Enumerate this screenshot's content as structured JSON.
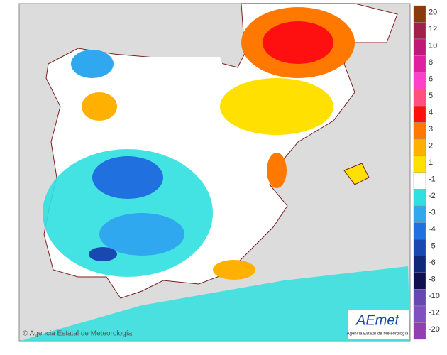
{
  "map": {
    "credit": "© Agencia Estatal de Meteorología",
    "logo": {
      "name": "AEmet",
      "subtitle": "Agencia Estatal de Meteorología"
    },
    "legend": [
      {
        "value": 20,
        "color": "#8b3a10"
      },
      {
        "value": 12,
        "color": "#a0204a"
      },
      {
        "value": 10,
        "color": "#c01878"
      },
      {
        "value": 8,
        "color": "#e020a0"
      },
      {
        "value": 6,
        "color": "#ff40c8"
      },
      {
        "value": 5,
        "color": "#ff5080"
      },
      {
        "value": 4,
        "color": "#ff1010"
      },
      {
        "value": 3,
        "color": "#ff7800"
      },
      {
        "value": 2,
        "color": "#ffb000"
      },
      {
        "value": 1,
        "color": "#ffe000"
      },
      {
        "value": -1,
        "color": "#ffffff"
      },
      {
        "value": -2,
        "color": "#30e0e0"
      },
      {
        "value": -3,
        "color": "#30a8f0"
      },
      {
        "value": -4,
        "color": "#2070e0"
      },
      {
        "value": -5,
        "color": "#1848b0"
      },
      {
        "value": -6,
        "color": "#102878"
      },
      {
        "value": -8,
        "color": "#101050"
      },
      {
        "value": -10,
        "color": "#6848b0"
      },
      {
        "value": -12,
        "color": "#8050c0"
      },
      {
        "value": -20,
        "color": "#9040b0"
      }
    ]
  }
}
